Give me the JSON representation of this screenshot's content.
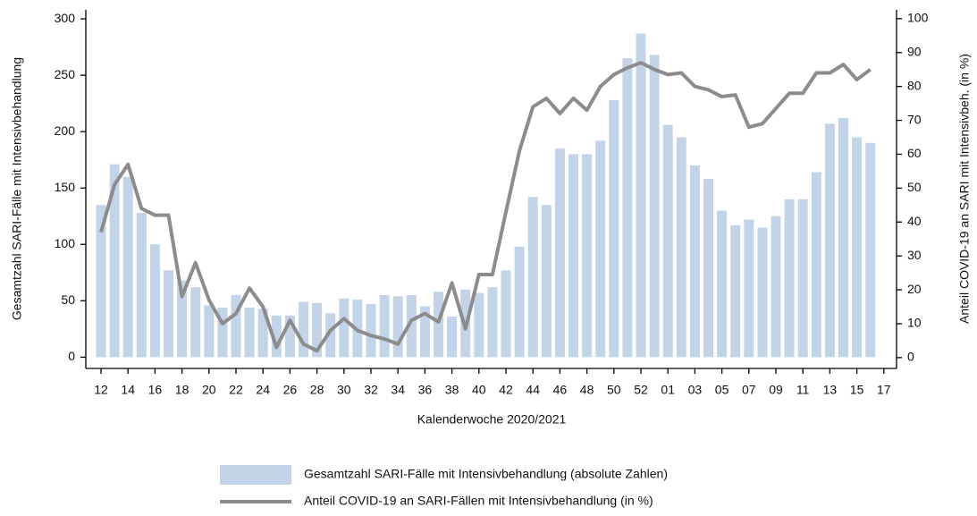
{
  "chart_data": {
    "type": "bar_line",
    "x_label": "Kalenderwoche 2020/2021",
    "y_label": "Gesamtzahl SARI-Fälle mit Intensivbehandlung",
    "y2_label": "Anteil COVID-19 an SARI mit Intensivbeh. (in %)",
    "categories": [
      "12",
      null,
      "14",
      null,
      "16",
      null,
      "18",
      null,
      "20",
      null,
      "22",
      null,
      "24",
      null,
      "26",
      null,
      "28",
      null,
      "30",
      null,
      "32",
      null,
      "34",
      null,
      "36",
      null,
      "38",
      null,
      "40",
      null,
      "42",
      null,
      "44",
      null,
      "46",
      null,
      "48",
      null,
      "50",
      null,
      "52",
      null,
      "01",
      null,
      "03",
      null,
      "05",
      null,
      "07",
      null,
      "09",
      null,
      "11",
      null,
      "13",
      null,
      "15",
      null,
      "17"
    ],
    "series": [
      {
        "name": "Gesamtzahl SARI-Fälle mit Intensivbehandlung (absolute Zahlen)",
        "type": "bar",
        "color": "#c3d4e9",
        "values": [
          135,
          171,
          160,
          128,
          100,
          77,
          68,
          62,
          46,
          44,
          55,
          44,
          43,
          37,
          37,
          49,
          48,
          39,
          52,
          51,
          47,
          55,
          54,
          55,
          45,
          58,
          36,
          60,
          57,
          62,
          77,
          98,
          142,
          135,
          185,
          180,
          180,
          192,
          228,
          265,
          287,
          268,
          206,
          195,
          170,
          158,
          130,
          117,
          122,
          115,
          125,
          140,
          140,
          164,
          207,
          212,
          195,
          190,
          null
        ]
      },
      {
        "name": "Anteil COVID-19 an SARI-Fällen mit Intensivbehandlung (in %)",
        "type": "line",
        "axis": "y2",
        "color": "#8c8c8c",
        "values": [
          37,
          51,
          57,
          44,
          42,
          42,
          18,
          28,
          17,
          10,
          13,
          20.5,
          15,
          3,
          11,
          4,
          2,
          8,
          11.5,
          8,
          6.5,
          5.5,
          4,
          11,
          13,
          10.5,
          22,
          8.5,
          24.5,
          24.5,
          43,
          61,
          74,
          76.5,
          72,
          76.5,
          73,
          80,
          83.5,
          85.5,
          87,
          85,
          83.5,
          84,
          80,
          79,
          77,
          77.5,
          68,
          69,
          73.5,
          78,
          78,
          84,
          84,
          86.5,
          82,
          85,
          null
        ]
      }
    ],
    "ylim": [
      -10,
      308
    ],
    "yticks": [
      0,
      50,
      100,
      150,
      200,
      250,
      300
    ],
    "y2lim": [
      -3.2,
      102.6
    ],
    "y2ticks": [
      0,
      10,
      20,
      30,
      40,
      50,
      60,
      70,
      80,
      90,
      100
    ]
  }
}
